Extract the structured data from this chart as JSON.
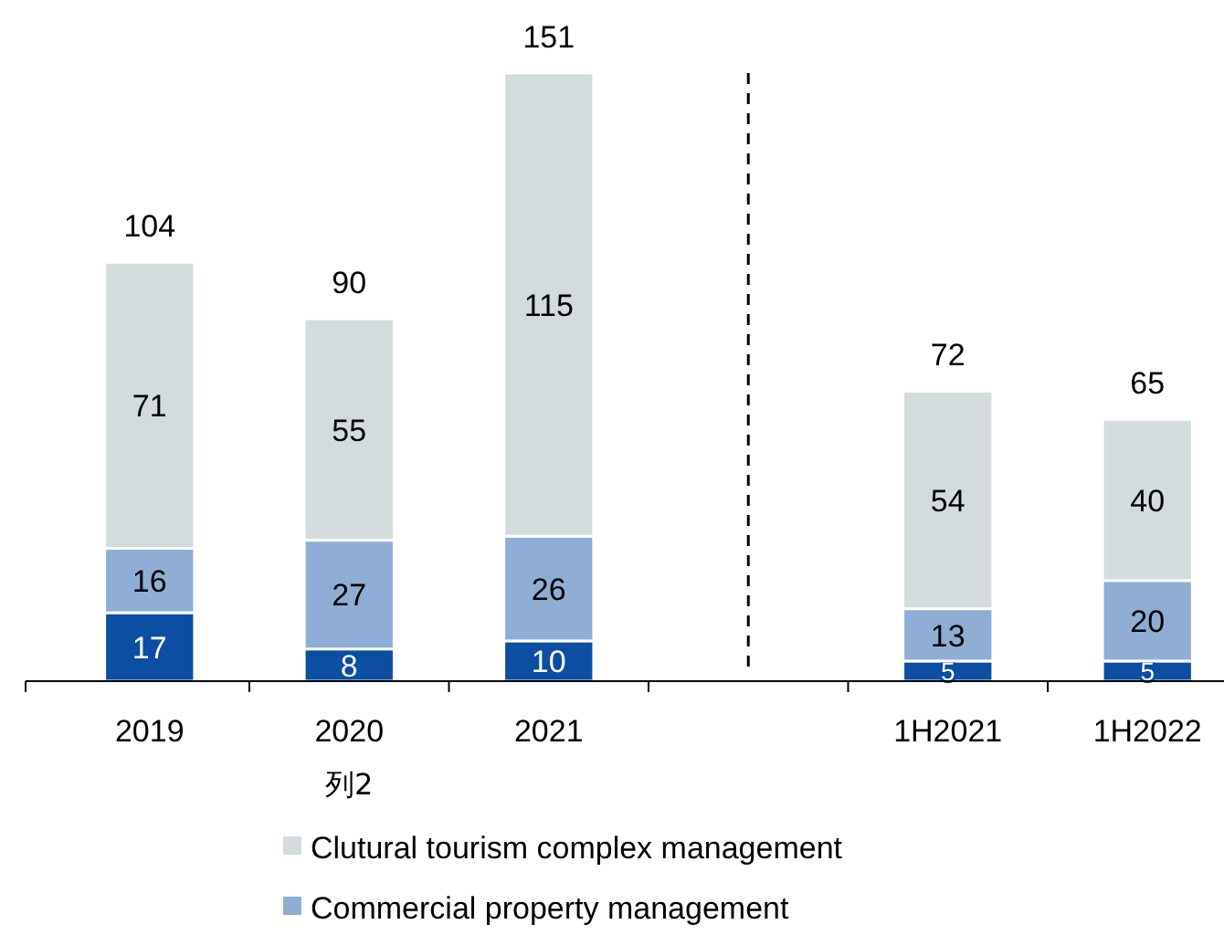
{
  "chart_data": {
    "type": "bar",
    "stacked": true,
    "data_labels": true,
    "legend": "bottom",
    "categories": [
      "2019",
      "2020",
      "2021",
      null,
      "1H2021",
      "1H2022"
    ],
    "series": [
      {
        "color": "#0b4ea2",
        "values": [
          17,
          8,
          10,
          null,
          5,
          5
        ]
      },
      {
        "name": "Commercial property management",
        "color": "#8eaed6",
        "values": [
          16,
          27,
          26,
          null,
          13,
          20
        ]
      },
      {
        "name": "Clutural tourism complex management",
        "color": "#d3dcdc",
        "values": [
          71,
          55,
          115,
          null,
          54,
          40
        ]
      }
    ],
    "totals": [
      "104",
      "90",
      "151",
      null,
      "72",
      "65"
    ],
    "annotations": [
      "列2"
    ]
  }
}
